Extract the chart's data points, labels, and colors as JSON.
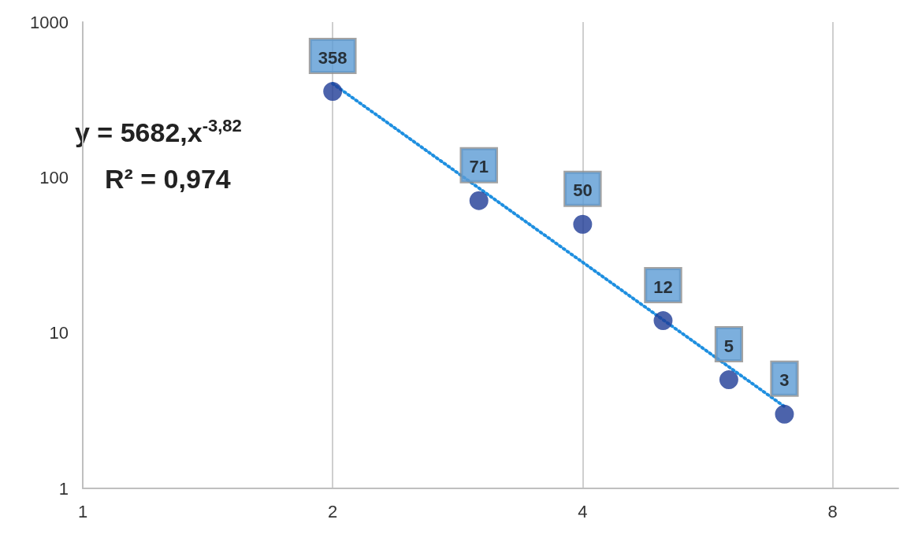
{
  "chart_data": {
    "type": "scatter",
    "log": "xy",
    "xlim": [
      1,
      9.6
    ],
    "ylim": [
      1,
      1000
    ],
    "xticks": [
      1,
      2,
      4,
      8
    ],
    "yticks": [
      1,
      10,
      100,
      1000
    ],
    "grid": "x",
    "annotations": [
      "y = 5682,x$^{-3,82}$",
      "R² = 0,974"
    ],
    "series": [
      {
        "color": "#1f3c96",
        "marker": "circle",
        "x": [
          2,
          3,
          4,
          5,
          6,
          7
        ],
        "values": [
          358,
          71,
          50,
          12,
          5,
          3
        ],
        "value_labels": [
          "358",
          "71",
          "50",
          "12",
          "5",
          "3"
        ]
      },
      {
        "type": "line",
        "color": "#1e8fe0",
        "marker": "none",
        "line_style": "dotted",
        "x": [
          2,
          7
        ],
        "values": [
          402,
          3.36
        ]
      }
    ]
  }
}
